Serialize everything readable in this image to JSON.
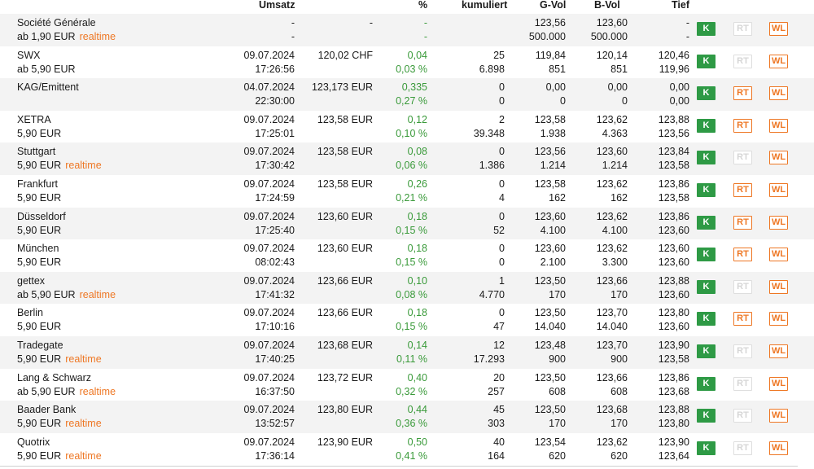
{
  "headers": {
    "umsatz": "Umsatz",
    "percent": "%",
    "kumuliert": "kumuliert",
    "gvol": "G-Vol",
    "bvol": "B-Vol",
    "tief": "Tief"
  },
  "buttons": {
    "k": "K",
    "rt": "RT",
    "wl": "WL"
  },
  "colors": {
    "green": "#3a9a3a",
    "orange": "#ee7724",
    "button_green": "#2e9a45"
  },
  "rows": [
    {
      "name": "Société Générale",
      "fee": "ab 1,90 EUR",
      "realtime": "realtime",
      "date": "-",
      "time": "-",
      "price": "-",
      "change": "-",
      "change_pct": "-",
      "kum_top": "",
      "kum_bottom": "",
      "gvol_top": "123,56",
      "gvol_bottom": "500.000",
      "bvol_top": "123,60",
      "bvol_bottom": "500.000",
      "tief_top": "-",
      "tief_bottom": "-",
      "rt_active": false
    },
    {
      "name": "SWX",
      "fee": "ab 5,90 EUR",
      "realtime": "",
      "date": "09.07.2024",
      "time": "17:26:56",
      "price": "120,02 CHF",
      "change": "0,04",
      "change_pct": "0,03 %",
      "kum_top": "25",
      "kum_bottom": "6.898",
      "gvol_top": "119,84",
      "gvol_bottom": "851",
      "bvol_top": "120,14",
      "bvol_bottom": "851",
      "tief_top": "120,46",
      "tief_bottom": "119,96",
      "rt_active": false
    },
    {
      "name": "KAG/Emittent",
      "fee": "",
      "realtime": "",
      "date": "04.07.2024",
      "time": "22:30:00",
      "price": "123,173 EUR",
      "change": "0,335",
      "change_pct": "0,27 %",
      "kum_top": "0",
      "kum_bottom": "0",
      "gvol_top": "0,00",
      "gvol_bottom": "0",
      "bvol_top": "0,00",
      "bvol_bottom": "0",
      "tief_top": "0,00",
      "tief_bottom": "0,00",
      "rt_active": true
    },
    {
      "name": "XETRA",
      "fee": "5,90 EUR",
      "realtime": "",
      "date": "09.07.2024",
      "time": "17:25:01",
      "price": "123,58 EUR",
      "change": "0,12",
      "change_pct": "0,10 %",
      "kum_top": "2",
      "kum_bottom": "39.348",
      "gvol_top": "123,58",
      "gvol_bottom": "1.938",
      "bvol_top": "123,62",
      "bvol_bottom": "4.363",
      "tief_top": "123,88",
      "tief_bottom": "123,56",
      "rt_active": true
    },
    {
      "name": "Stuttgart",
      "fee": "5,90 EUR",
      "realtime": "realtime",
      "date": "09.07.2024",
      "time": "17:30:42",
      "price": "123,58 EUR",
      "change": "0,08",
      "change_pct": "0,06 %",
      "kum_top": "0",
      "kum_bottom": "1.386",
      "gvol_top": "123,56",
      "gvol_bottom": "1.214",
      "bvol_top": "123,60",
      "bvol_bottom": "1.214",
      "tief_top": "123,84",
      "tief_bottom": "123,58",
      "rt_active": false
    },
    {
      "name": "Frankfurt",
      "fee": "5,90 EUR",
      "realtime": "",
      "date": "09.07.2024",
      "time": "17:24:59",
      "price": "123,58 EUR",
      "change": "0,26",
      "change_pct": "0,21 %",
      "kum_top": "0",
      "kum_bottom": "4",
      "gvol_top": "123,58",
      "gvol_bottom": "162",
      "bvol_top": "123,62",
      "bvol_bottom": "162",
      "tief_top": "123,86",
      "tief_bottom": "123,58",
      "rt_active": true
    },
    {
      "name": "Düsseldorf",
      "fee": "5,90 EUR",
      "realtime": "",
      "date": "09.07.2024",
      "time": "17:25:40",
      "price": "123,60 EUR",
      "change": "0,18",
      "change_pct": "0,15 %",
      "kum_top": "0",
      "kum_bottom": "52",
      "gvol_top": "123,60",
      "gvol_bottom": "4.100",
      "bvol_top": "123,62",
      "bvol_bottom": "4.100",
      "tief_top": "123,86",
      "tief_bottom": "123,60",
      "rt_active": true
    },
    {
      "name": "München",
      "fee": "5,90 EUR",
      "realtime": "",
      "date": "09.07.2024",
      "time": "08:02:43",
      "price": "123,60 EUR",
      "change": "0,18",
      "change_pct": "0,15 %",
      "kum_top": "0",
      "kum_bottom": "0",
      "gvol_top": "123,60",
      "gvol_bottom": "2.100",
      "bvol_top": "123,62",
      "bvol_bottom": "3.300",
      "tief_top": "123,60",
      "tief_bottom": "123,60",
      "rt_active": true
    },
    {
      "name": "gettex",
      "fee": "ab 5,90 EUR",
      "realtime": "realtime",
      "date": "09.07.2024",
      "time": "17:41:32",
      "price": "123,66 EUR",
      "change": "0,10",
      "change_pct": "0,08 %",
      "kum_top": "1",
      "kum_bottom": "4.770",
      "gvol_top": "123,50",
      "gvol_bottom": "170",
      "bvol_top": "123,66",
      "bvol_bottom": "170",
      "tief_top": "123,88",
      "tief_bottom": "123,60",
      "rt_active": false
    },
    {
      "name": "Berlin",
      "fee": "5,90 EUR",
      "realtime": "",
      "date": "09.07.2024",
      "time": "17:10:16",
      "price": "123,66 EUR",
      "change": "0,18",
      "change_pct": "0,15 %",
      "kum_top": "0",
      "kum_bottom": "47",
      "gvol_top": "123,50",
      "gvol_bottom": "14.040",
      "bvol_top": "123,70",
      "bvol_bottom": "14.040",
      "tief_top": "123,80",
      "tief_bottom": "123,60",
      "rt_active": true
    },
    {
      "name": "Tradegate",
      "fee": "5,90 EUR",
      "realtime": "realtime",
      "date": "09.07.2024",
      "time": "17:40:25",
      "price": "123,68 EUR",
      "change": "0,14",
      "change_pct": "0,11 %",
      "kum_top": "12",
      "kum_bottom": "17.293",
      "gvol_top": "123,48",
      "gvol_bottom": "900",
      "bvol_top": "123,70",
      "bvol_bottom": "900",
      "tief_top": "123,90",
      "tief_bottom": "123,58",
      "rt_active": false
    },
    {
      "name": "Lang & Schwarz",
      "fee": "ab 5,90 EUR",
      "realtime": "realtime",
      "date": "09.07.2024",
      "time": "16:37:50",
      "price": "123,72 EUR",
      "change": "0,40",
      "change_pct": "0,32 %",
      "kum_top": "20",
      "kum_bottom": "257",
      "gvol_top": "123,50",
      "gvol_bottom": "608",
      "bvol_top": "123,66",
      "bvol_bottom": "608",
      "tief_top": "123,86",
      "tief_bottom": "123,68",
      "rt_active": false
    },
    {
      "name": "Baader Bank",
      "fee": "5,90 EUR",
      "realtime": "realtime",
      "date": "09.07.2024",
      "time": "13:52:57",
      "price": "123,80 EUR",
      "change": "0,44",
      "change_pct": "0,36 %",
      "kum_top": "45",
      "kum_bottom": "303",
      "gvol_top": "123,50",
      "gvol_bottom": "170",
      "bvol_top": "123,68",
      "bvol_bottom": "170",
      "tief_top": "123,88",
      "tief_bottom": "123,80",
      "rt_active": false
    },
    {
      "name": "Quotrix",
      "fee": "5,90 EUR",
      "realtime": "realtime",
      "date": "09.07.2024",
      "time": "17:36:14",
      "price": "123,90 EUR",
      "change": "0,50",
      "change_pct": "0,41 %",
      "kum_top": "40",
      "kum_bottom": "164",
      "gvol_top": "123,54",
      "gvol_bottom": "620",
      "bvol_top": "123,62",
      "bvol_bottom": "620",
      "tief_top": "123,90",
      "tief_bottom": "123,64",
      "rt_active": false
    }
  ]
}
